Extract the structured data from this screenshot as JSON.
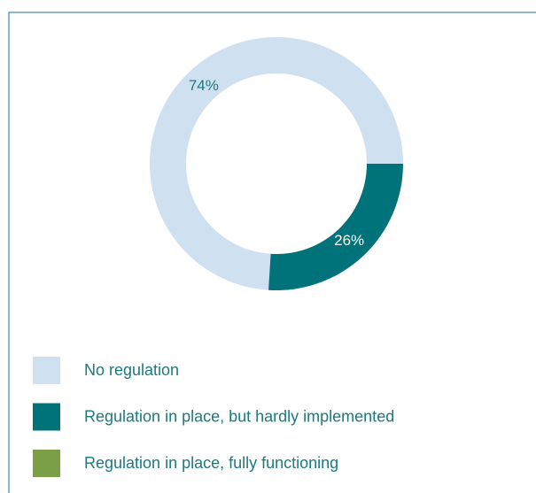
{
  "chart_data": {
    "type": "donut",
    "categories": [
      "No regulation",
      "Regulation in place, but hardly implemented",
      "Regulation in place, fully functioning"
    ],
    "values": [
      74,
      26,
      0
    ],
    "value_labels": [
      "74%",
      "26%",
      null
    ],
    "colors": [
      "#cfe0f1",
      "#00737a",
      "#7a9f47"
    ],
    "label_colors": [
      "#1a7a80",
      "#ffffff",
      "#ffffff"
    ],
    "legend": "bottom"
  }
}
